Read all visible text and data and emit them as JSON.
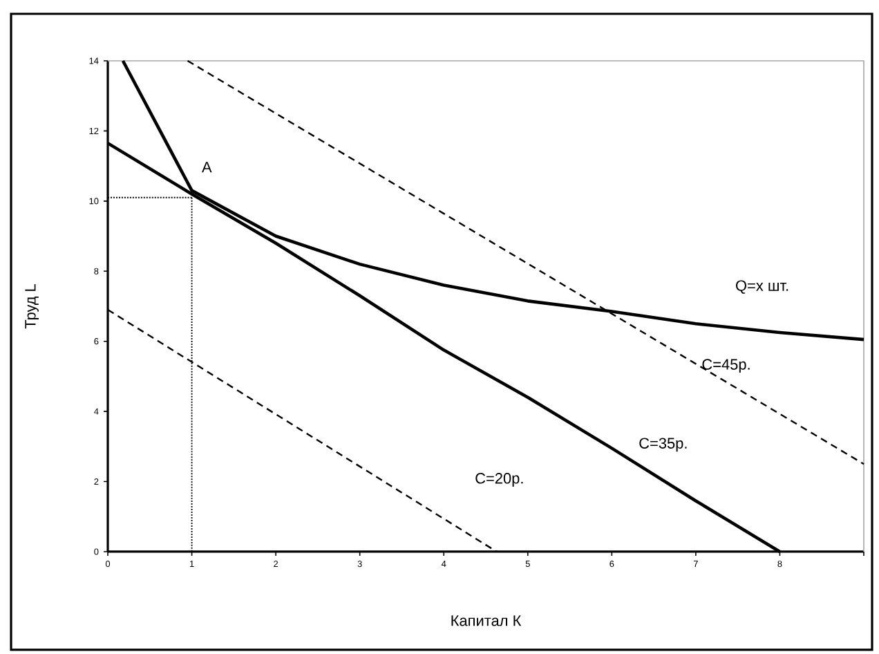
{
  "chart_data": {
    "type": "line",
    "xlabel": "Капитал К",
    "ylabel": "Труд L",
    "xlim": [
      0,
      9
    ],
    "ylim": [
      0,
      14
    ],
    "xticks": [
      0,
      1,
      2,
      3,
      4,
      5,
      6,
      7,
      8,
      {
        "value": 9,
        "label": null
      }
    ],
    "yticks": [
      0,
      2,
      4,
      6,
      8,
      10,
      12,
      14
    ],
    "annotations": [
      {
        "text": "A",
        "x": 1,
        "y": 10.3
      }
    ],
    "series": [
      {
        "name": "Q=x шт.",
        "color": "#000000",
        "line_style": "solid",
        "x": [
          0.18,
          1,
          2,
          3,
          4,
          5,
          6,
          7,
          8,
          9
        ],
        "values": [
          14,
          10.3,
          9.0,
          8.2,
          7.6,
          7.15,
          6.85,
          6.5,
          6.25,
          6.05
        ]
      },
      {
        "name": "C=45р.",
        "color": "#000000",
        "line_style": "dashed",
        "x": [
          0.95,
          9
        ],
        "values": [
          14,
          2.5
        ]
      },
      {
        "name": "C=35р.",
        "color": "#000000",
        "line_style": "solid",
        "x": [
          0,
          1,
          2,
          3,
          4,
          5,
          6,
          7,
          8
        ],
        "values": [
          11.65,
          10.2,
          8.8,
          7.3,
          5.75,
          4.4,
          2.95,
          1.45,
          0
        ]
      },
      {
        "name": "C=20р.",
        "color": "#000000",
        "line_style": "dashed",
        "x": [
          0,
          4.63
        ],
        "values": [
          6.9,
          0
        ]
      },
      {
        "color": "#000000",
        "line_style": "dotted",
        "x": [
          0,
          1
        ],
        "values": [
          10.1,
          10.1
        ]
      },
      {
        "color": "#000000",
        "line_style": "dotted",
        "x": [
          1,
          1
        ],
        "values": [
          10.1,
          0
        ]
      }
    ]
  }
}
